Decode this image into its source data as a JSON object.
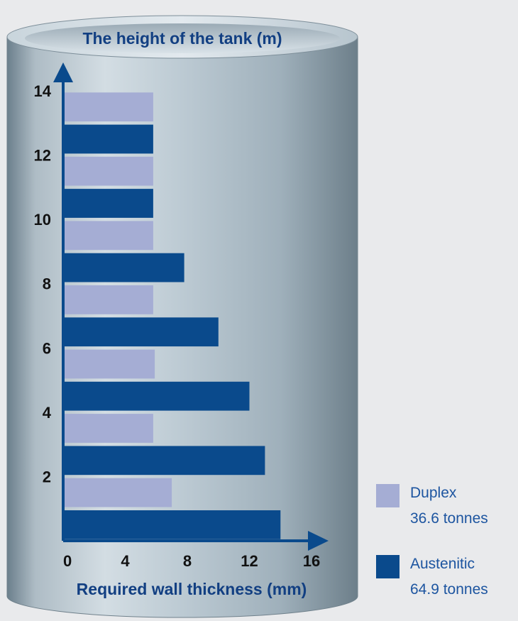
{
  "chart_data": {
    "type": "bar",
    "orientation": "horizontal",
    "title": "The height of the tank (m)",
    "xlabel": "Required wall thickness (mm)",
    "ylabel": "",
    "x_ticks": [
      "0",
      "4",
      "8",
      "12",
      "16"
    ],
    "y_ticks": [
      "2",
      "4",
      "6",
      "8",
      "10",
      "12",
      "14"
    ],
    "xlim": [
      0,
      16
    ],
    "ylim": [
      0,
      14
    ],
    "grid": false,
    "legend_position": "bottom-right",
    "bar_height": 0.9,
    "series": [
      {
        "name": "Duplex",
        "note": "36.6 tonnes",
        "color": "#a5add4",
        "y": [
          1.5,
          3.5,
          5.5,
          7.5,
          9.5,
          11.5,
          13.5
        ],
        "values": [
          7.0,
          5.8,
          5.9,
          5.8,
          5.8,
          5.8,
          5.8
        ]
      },
      {
        "name": "Austenitic",
        "note": "64.9 tonnes",
        "color": "#0a4a8c",
        "y": [
          0.5,
          2.5,
          4.5,
          6.5,
          8.5,
          10.5,
          12.5
        ],
        "values": [
          14.0,
          13.0,
          12.0,
          10.0,
          7.8,
          5.8,
          5.8
        ]
      }
    ]
  }
}
